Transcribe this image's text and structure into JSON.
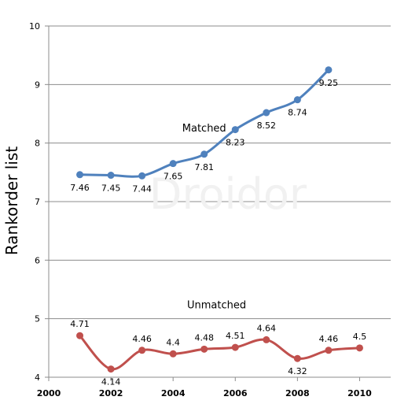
{
  "chart_data": {
    "type": "line",
    "title": "",
    "xlabel": "",
    "ylabel": "Rankorder list",
    "xlim": [
      2000,
      2011
    ],
    "ylim": [
      4,
      10
    ],
    "x_ticks": [
      2000,
      2002,
      2004,
      2006,
      2008,
      2010
    ],
    "y_ticks": [
      4,
      5,
      6,
      7,
      8,
      9,
      10
    ],
    "grid": "horizontal",
    "watermark": "Droidor",
    "x": [
      2001,
      2002,
      2003,
      2004,
      2005,
      2006,
      2007,
      2008,
      2009
    ],
    "series": [
      {
        "name": "Matched",
        "color": "#4f81bd",
        "x": [
          2001,
          2002,
          2003,
          2004,
          2005,
          2006,
          2007,
          2008,
          2009
        ],
        "values": [
          7.46,
          7.45,
          7.44,
          7.65,
          7.81,
          8.23,
          8.52,
          8.74,
          9.25
        ]
      },
      {
        "name": "Unmatched",
        "color": "#c0504d",
        "x": [
          2001,
          2002,
          2003,
          2004,
          2005,
          2006,
          2007,
          2008,
          2009,
          2010
        ],
        "values": [
          4.71,
          4.14,
          4.46,
          4.4,
          4.48,
          4.51,
          4.64,
          4.32,
          4.46,
          4.5
        ]
      }
    ]
  }
}
